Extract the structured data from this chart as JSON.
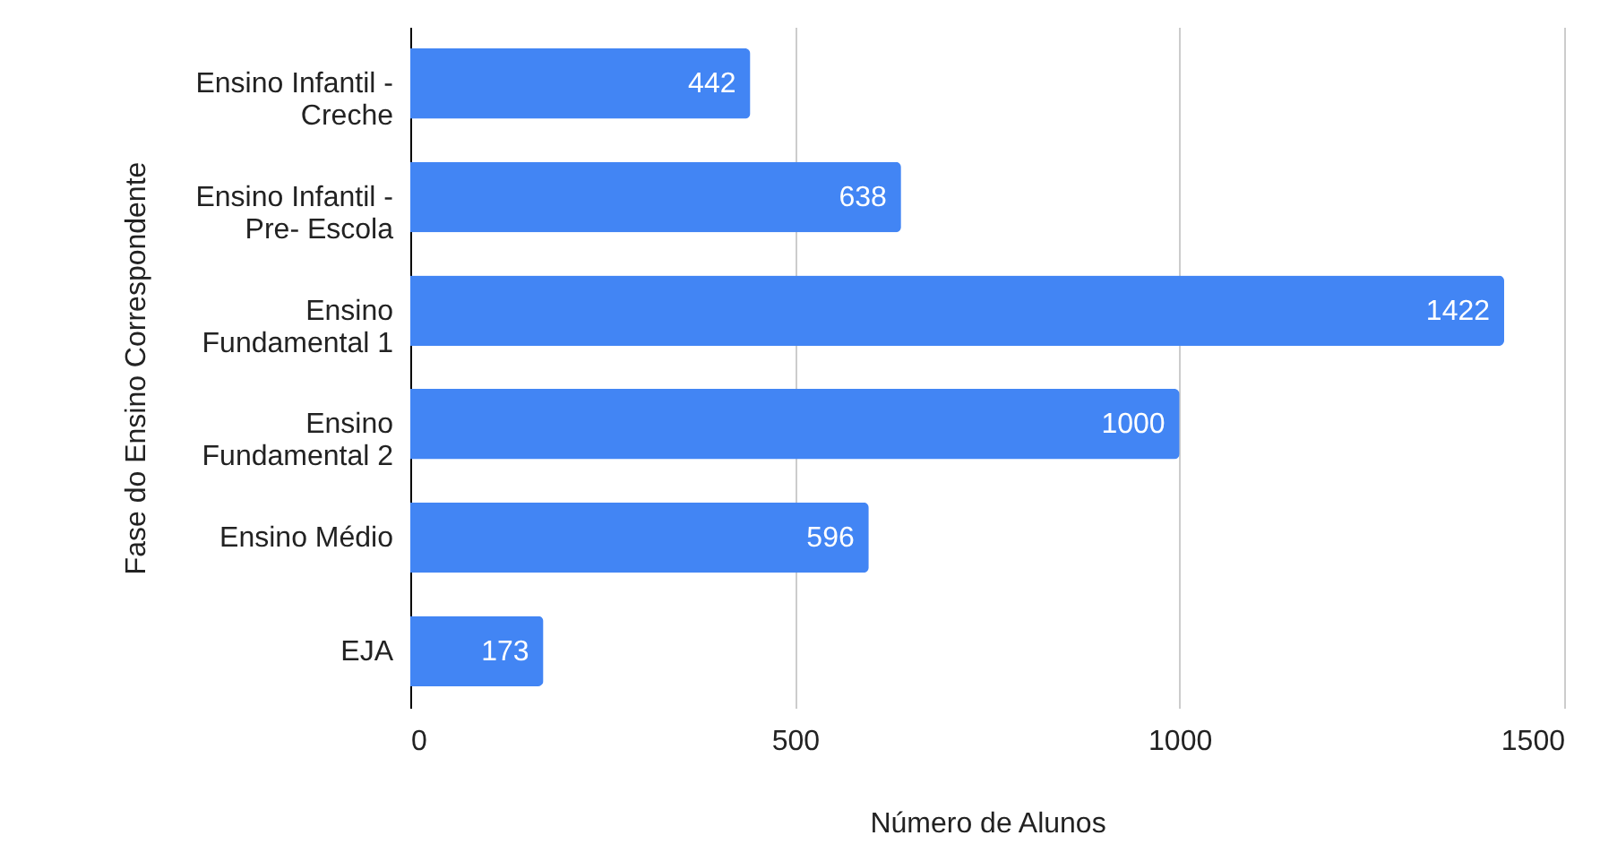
{
  "chart_data": {
    "type": "bar",
    "orientation": "horizontal",
    "xlabel": "Número de Alunos",
    "ylabel": "Fase do Ensino Correspondente",
    "categories": [
      "Ensino Infantil -\nCreche",
      "Ensino Infantil -\nPre- Escola",
      "Ensino\nFundamental 1",
      "Ensino\nFundamental 2",
      "Ensino Médio",
      "EJA"
    ],
    "values": [
      442,
      638,
      1422,
      1000,
      596,
      173
    ],
    "color": "#4285f4",
    "xlim": [
      0,
      1500
    ],
    "xticks": [
      0,
      500,
      1000,
      1500
    ],
    "grid": "x",
    "data_labels": true
  }
}
